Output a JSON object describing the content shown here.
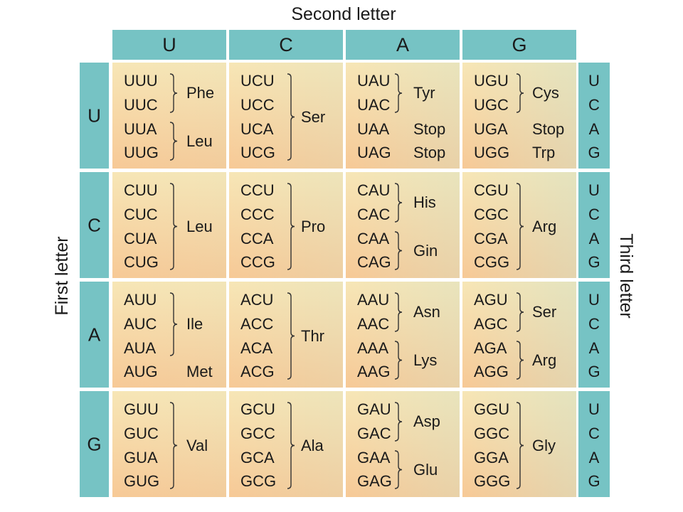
{
  "labels": {
    "second": "Second letter",
    "first": "First letter",
    "third": "Third letter"
  },
  "colors": {
    "header": "#76c3c4",
    "cell_top": "#f7e6b6",
    "cell_bottom": "#f7c996",
    "cell_teal_tint": "#cfe0c8"
  },
  "second_letters": [
    "U",
    "C",
    "A",
    "G"
  ],
  "first_letters": [
    "U",
    "C",
    "A",
    "G"
  ],
  "third_letters": [
    "U",
    "C",
    "A",
    "G"
  ],
  "rows": [
    {
      "cells": [
        {
          "codons": [
            "UUU",
            "UUC",
            "UUA",
            "UUG"
          ],
          "groups": [
            {
              "label": "Phe",
              "from": 0,
              "to": 1,
              "brace": true
            },
            {
              "label": "Leu",
              "from": 2,
              "to": 3,
              "brace": true
            }
          ]
        },
        {
          "codons": [
            "UCU",
            "UCC",
            "UCA",
            "UCG"
          ],
          "groups": [
            {
              "label": "Ser",
              "from": 0,
              "to": 3,
              "brace": true
            }
          ]
        },
        {
          "codons": [
            "UAU",
            "UAC",
            "UAA",
            "UAG"
          ],
          "groups": [
            {
              "label": "Tyr",
              "from": 0,
              "to": 1,
              "brace": true
            },
            {
              "label": "Stop",
              "from": 2,
              "to": 2,
              "brace": false
            },
            {
              "label": "Stop",
              "from": 3,
              "to": 3,
              "brace": false
            }
          ]
        },
        {
          "codons": [
            "UGU",
            "UGC",
            "UGA",
            "UGG"
          ],
          "groups": [
            {
              "label": "Cys",
              "from": 0,
              "to": 1,
              "brace": true
            },
            {
              "label": "Stop",
              "from": 2,
              "to": 2,
              "brace": false
            },
            {
              "label": "Trp",
              "from": 3,
              "to": 3,
              "brace": false
            }
          ]
        }
      ]
    },
    {
      "cells": [
        {
          "codons": [
            "CUU",
            "CUC",
            "CUA",
            "CUG"
          ],
          "groups": [
            {
              "label": "Leu",
              "from": 0,
              "to": 3,
              "brace": true
            }
          ]
        },
        {
          "codons": [
            "CCU",
            "CCC",
            "CCA",
            "CCG"
          ],
          "groups": [
            {
              "label": "Pro",
              "from": 0,
              "to": 3,
              "brace": true
            }
          ]
        },
        {
          "codons": [
            "CAU",
            "CAC",
            "CAA",
            "CAG"
          ],
          "groups": [
            {
              "label": "His",
              "from": 0,
              "to": 1,
              "brace": true
            },
            {
              "label": "Gin",
              "from": 2,
              "to": 3,
              "brace": true
            }
          ]
        },
        {
          "codons": [
            "CGU",
            "CGC",
            "CGA",
            "CGG"
          ],
          "groups": [
            {
              "label": "Arg",
              "from": 0,
              "to": 3,
              "brace": true
            }
          ]
        }
      ]
    },
    {
      "cells": [
        {
          "codons": [
            "AUU",
            "AUC",
            "AUA",
            "AUG"
          ],
          "groups": [
            {
              "label": "Ile",
              "from": 0,
              "to": 2,
              "brace": true
            },
            {
              "label": "Met",
              "from": 3,
              "to": 3,
              "brace": false
            }
          ]
        },
        {
          "codons": [
            "ACU",
            "ACC",
            "ACA",
            "ACG"
          ],
          "groups": [
            {
              "label": "Thr",
              "from": 0,
              "to": 3,
              "brace": true
            }
          ]
        },
        {
          "codons": [
            "AAU",
            "AAC",
            "AAA",
            "AAG"
          ],
          "groups": [
            {
              "label": "Asn",
              "from": 0,
              "to": 1,
              "brace": true
            },
            {
              "label": "Lys",
              "from": 2,
              "to": 3,
              "brace": true
            }
          ]
        },
        {
          "codons": [
            "AGU",
            "AGC",
            "AGA",
            "AGG"
          ],
          "groups": [
            {
              "label": "Ser",
              "from": 0,
              "to": 1,
              "brace": true
            },
            {
              "label": "Arg",
              "from": 2,
              "to": 3,
              "brace": true
            }
          ]
        }
      ]
    },
    {
      "cells": [
        {
          "codons": [
            "GUU",
            "GUC",
            "GUA",
            "GUG"
          ],
          "groups": [
            {
              "label": "Val",
              "from": 0,
              "to": 3,
              "brace": true
            }
          ]
        },
        {
          "codons": [
            "GCU",
            "GCC",
            "GCA",
            "GCG"
          ],
          "groups": [
            {
              "label": "Ala",
              "from": 0,
              "to": 3,
              "brace": true
            }
          ]
        },
        {
          "codons": [
            "GAU",
            "GAC",
            "GAA",
            "GAG"
          ],
          "groups": [
            {
              "label": "Asp",
              "from": 0,
              "to": 1,
              "brace": true
            },
            {
              "label": "Glu",
              "from": 2,
              "to": 3,
              "brace": true
            }
          ]
        },
        {
          "codons": [
            "GGU",
            "GGC",
            "GGA",
            "GGG"
          ],
          "groups": [
            {
              "label": "Gly",
              "from": 0,
              "to": 3,
              "brace": true
            }
          ]
        }
      ]
    }
  ]
}
